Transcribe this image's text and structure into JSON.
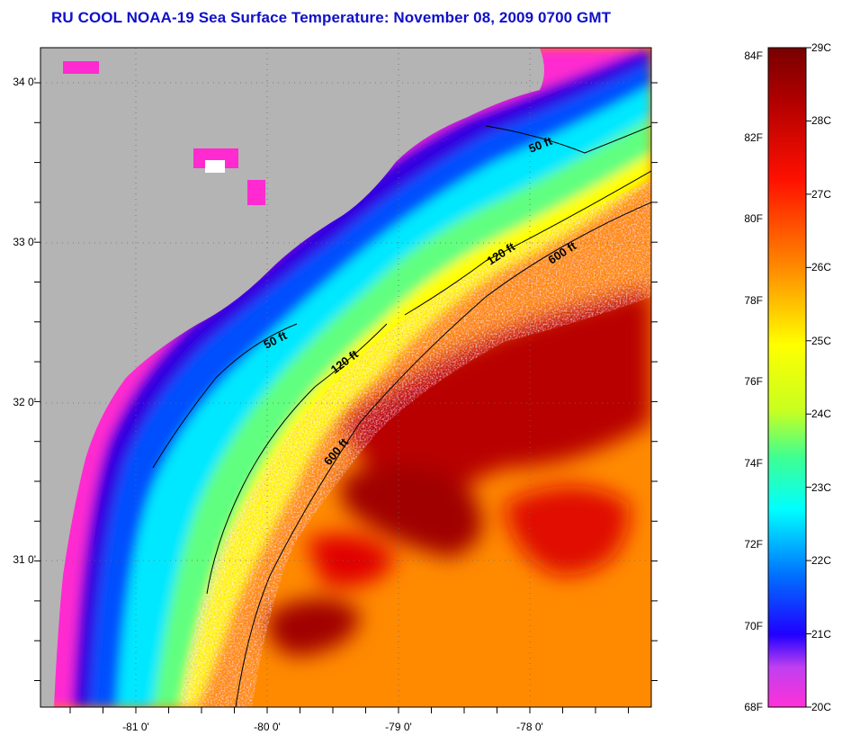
{
  "title": "RU COOL  NOAA-19  Sea Surface Temperature:  November 08, 2009 0700 GMT",
  "map": {
    "latitude_labels": [
      "34 0'",
      "33 0'",
      "32 0'",
      "31 0'"
    ],
    "longitude_labels": [
      "-81 0'",
      "-80 0'",
      "-79 0'",
      "-78 0'"
    ],
    "isobath_labels": [
      "50 ft",
      "50 ft",
      "120 ft",
      "120 ft",
      "600 ft",
      "600 ft"
    ],
    "land_color": "#b4b4b4",
    "cloud_color": "#ffffff"
  },
  "colorbar": {
    "fahrenheit_labels": [
      "84F",
      "82F",
      "80F",
      "78F",
      "76F",
      "74F",
      "72F",
      "70F",
      "68F"
    ],
    "celsius_labels": [
      "29C",
      "28C",
      "27C",
      "26C",
      "25C",
      "24C",
      "23C",
      "22C",
      "21C",
      "20C"
    ],
    "range_c": [
      20,
      29
    ],
    "range_f": [
      68,
      84.2
    ],
    "colors": [
      "#ff2ad0",
      "#8a2be2",
      "#0000ff",
      "#00a0ff",
      "#00ffff",
      "#a0ff60",
      "#ffff00",
      "#ff8c00",
      "#ff0000",
      "#800000"
    ]
  }
}
